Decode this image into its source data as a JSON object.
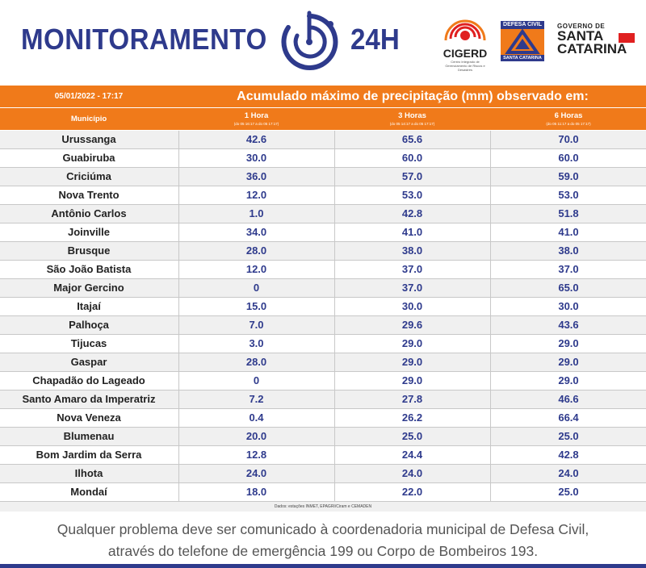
{
  "header": {
    "title": "MONITORAMENTO",
    "title_suffix": "24H",
    "logos": {
      "cigerd": "CIGERD",
      "cigerd_sub": "Centro Integrado de Gerenciamento de Riscos e Desastres",
      "defesa_civil_top": "DEFESA CIVIL",
      "defesa_civil_bottom": "SANTA CATARINA",
      "governo": "GOVERNO DE",
      "santa": "SANTA",
      "catarina": "CATARINA"
    },
    "icons": [
      "radar-icon",
      "cigerd-logo-icon",
      "defesa-civil-logo-icon",
      "sc-flag-icon"
    ]
  },
  "table": {
    "datetime": "05/01/2022 - 17:17",
    "caption": "Acumulado máximo de precipitação (mm) observado em:",
    "columns": [
      {
        "label": "Município",
        "sub": ""
      },
      {
        "label": "1 Hora",
        "sub": "(do 05 16:17 a do 05 17:17)"
      },
      {
        "label": "3 Horas",
        "sub": "(do 05 14:17 a do 05 17:17)"
      },
      {
        "label": "6 Horas",
        "sub": "(do 05 11:17 a do 05 17:17)"
      }
    ],
    "rows": [
      {
        "municipio": "Urussanga",
        "h1": "42.6",
        "h3": "65.6",
        "h6": "70.0"
      },
      {
        "municipio": "Guabiruba",
        "h1": "30.0",
        "h3": "60.0",
        "h6": "60.0"
      },
      {
        "municipio": "Criciúma",
        "h1": "36.0",
        "h3": "57.0",
        "h6": "59.0"
      },
      {
        "municipio": "Nova Trento",
        "h1": "12.0",
        "h3": "53.0",
        "h6": "53.0"
      },
      {
        "municipio": "Antônio Carlos",
        "h1": "1.0",
        "h3": "42.8",
        "h6": "51.8"
      },
      {
        "municipio": "Joinville",
        "h1": "34.0",
        "h3": "41.0",
        "h6": "41.0"
      },
      {
        "municipio": "Brusque",
        "h1": "28.0",
        "h3": "38.0",
        "h6": "38.0"
      },
      {
        "municipio": "São João Batista",
        "h1": "12.0",
        "h3": "37.0",
        "h6": "37.0"
      },
      {
        "municipio": "Major Gercino",
        "h1": "0",
        "h3": "37.0",
        "h6": "65.0"
      },
      {
        "municipio": "Itajaí",
        "h1": "15.0",
        "h3": "30.0",
        "h6": "30.0"
      },
      {
        "municipio": "Palhoça",
        "h1": "7.0",
        "h3": "29.6",
        "h6": "43.6"
      },
      {
        "municipio": "Tijucas",
        "h1": "3.0",
        "h3": "29.0",
        "h6": "29.0"
      },
      {
        "municipio": "Gaspar",
        "h1": "28.0",
        "h3": "29.0",
        "h6": "29.0"
      },
      {
        "municipio": "Chapadão do Lageado",
        "h1": "0",
        "h3": "29.0",
        "h6": "29.0"
      },
      {
        "municipio": "Santo Amaro da Imperatriz",
        "h1": "7.2",
        "h3": "27.8",
        "h6": "46.6"
      },
      {
        "municipio": "Nova Veneza",
        "h1": "0.4",
        "h3": "26.2",
        "h6": "66.4"
      },
      {
        "municipio": "Blumenau",
        "h1": "20.0",
        "h3": "25.0",
        "h6": "25.0"
      },
      {
        "municipio": "Bom Jardim da Serra",
        "h1": "12.8",
        "h3": "24.4",
        "h6": "42.8"
      },
      {
        "municipio": "Ilhota",
        "h1": "24.0",
        "h3": "24.0",
        "h6": "24.0"
      },
      {
        "municipio": "Mondaí",
        "h1": "18.0",
        "h3": "22.0",
        "h6": "25.0"
      }
    ],
    "source": "Dados: estações INMET, EPAGRI/Ciram e CEMADEN"
  },
  "footer": {
    "line1": "Qualquer problema deve ser comunicado à coordenadoria municipal de Defesa Civil,",
    "line2": "através do telefone de emergência 199 ou Corpo de Bombeiros 193."
  },
  "colors": {
    "accent_orange": "#f07a1a",
    "brand_blue": "#2e3a8c",
    "row_alt": "#f0f0f0"
  }
}
